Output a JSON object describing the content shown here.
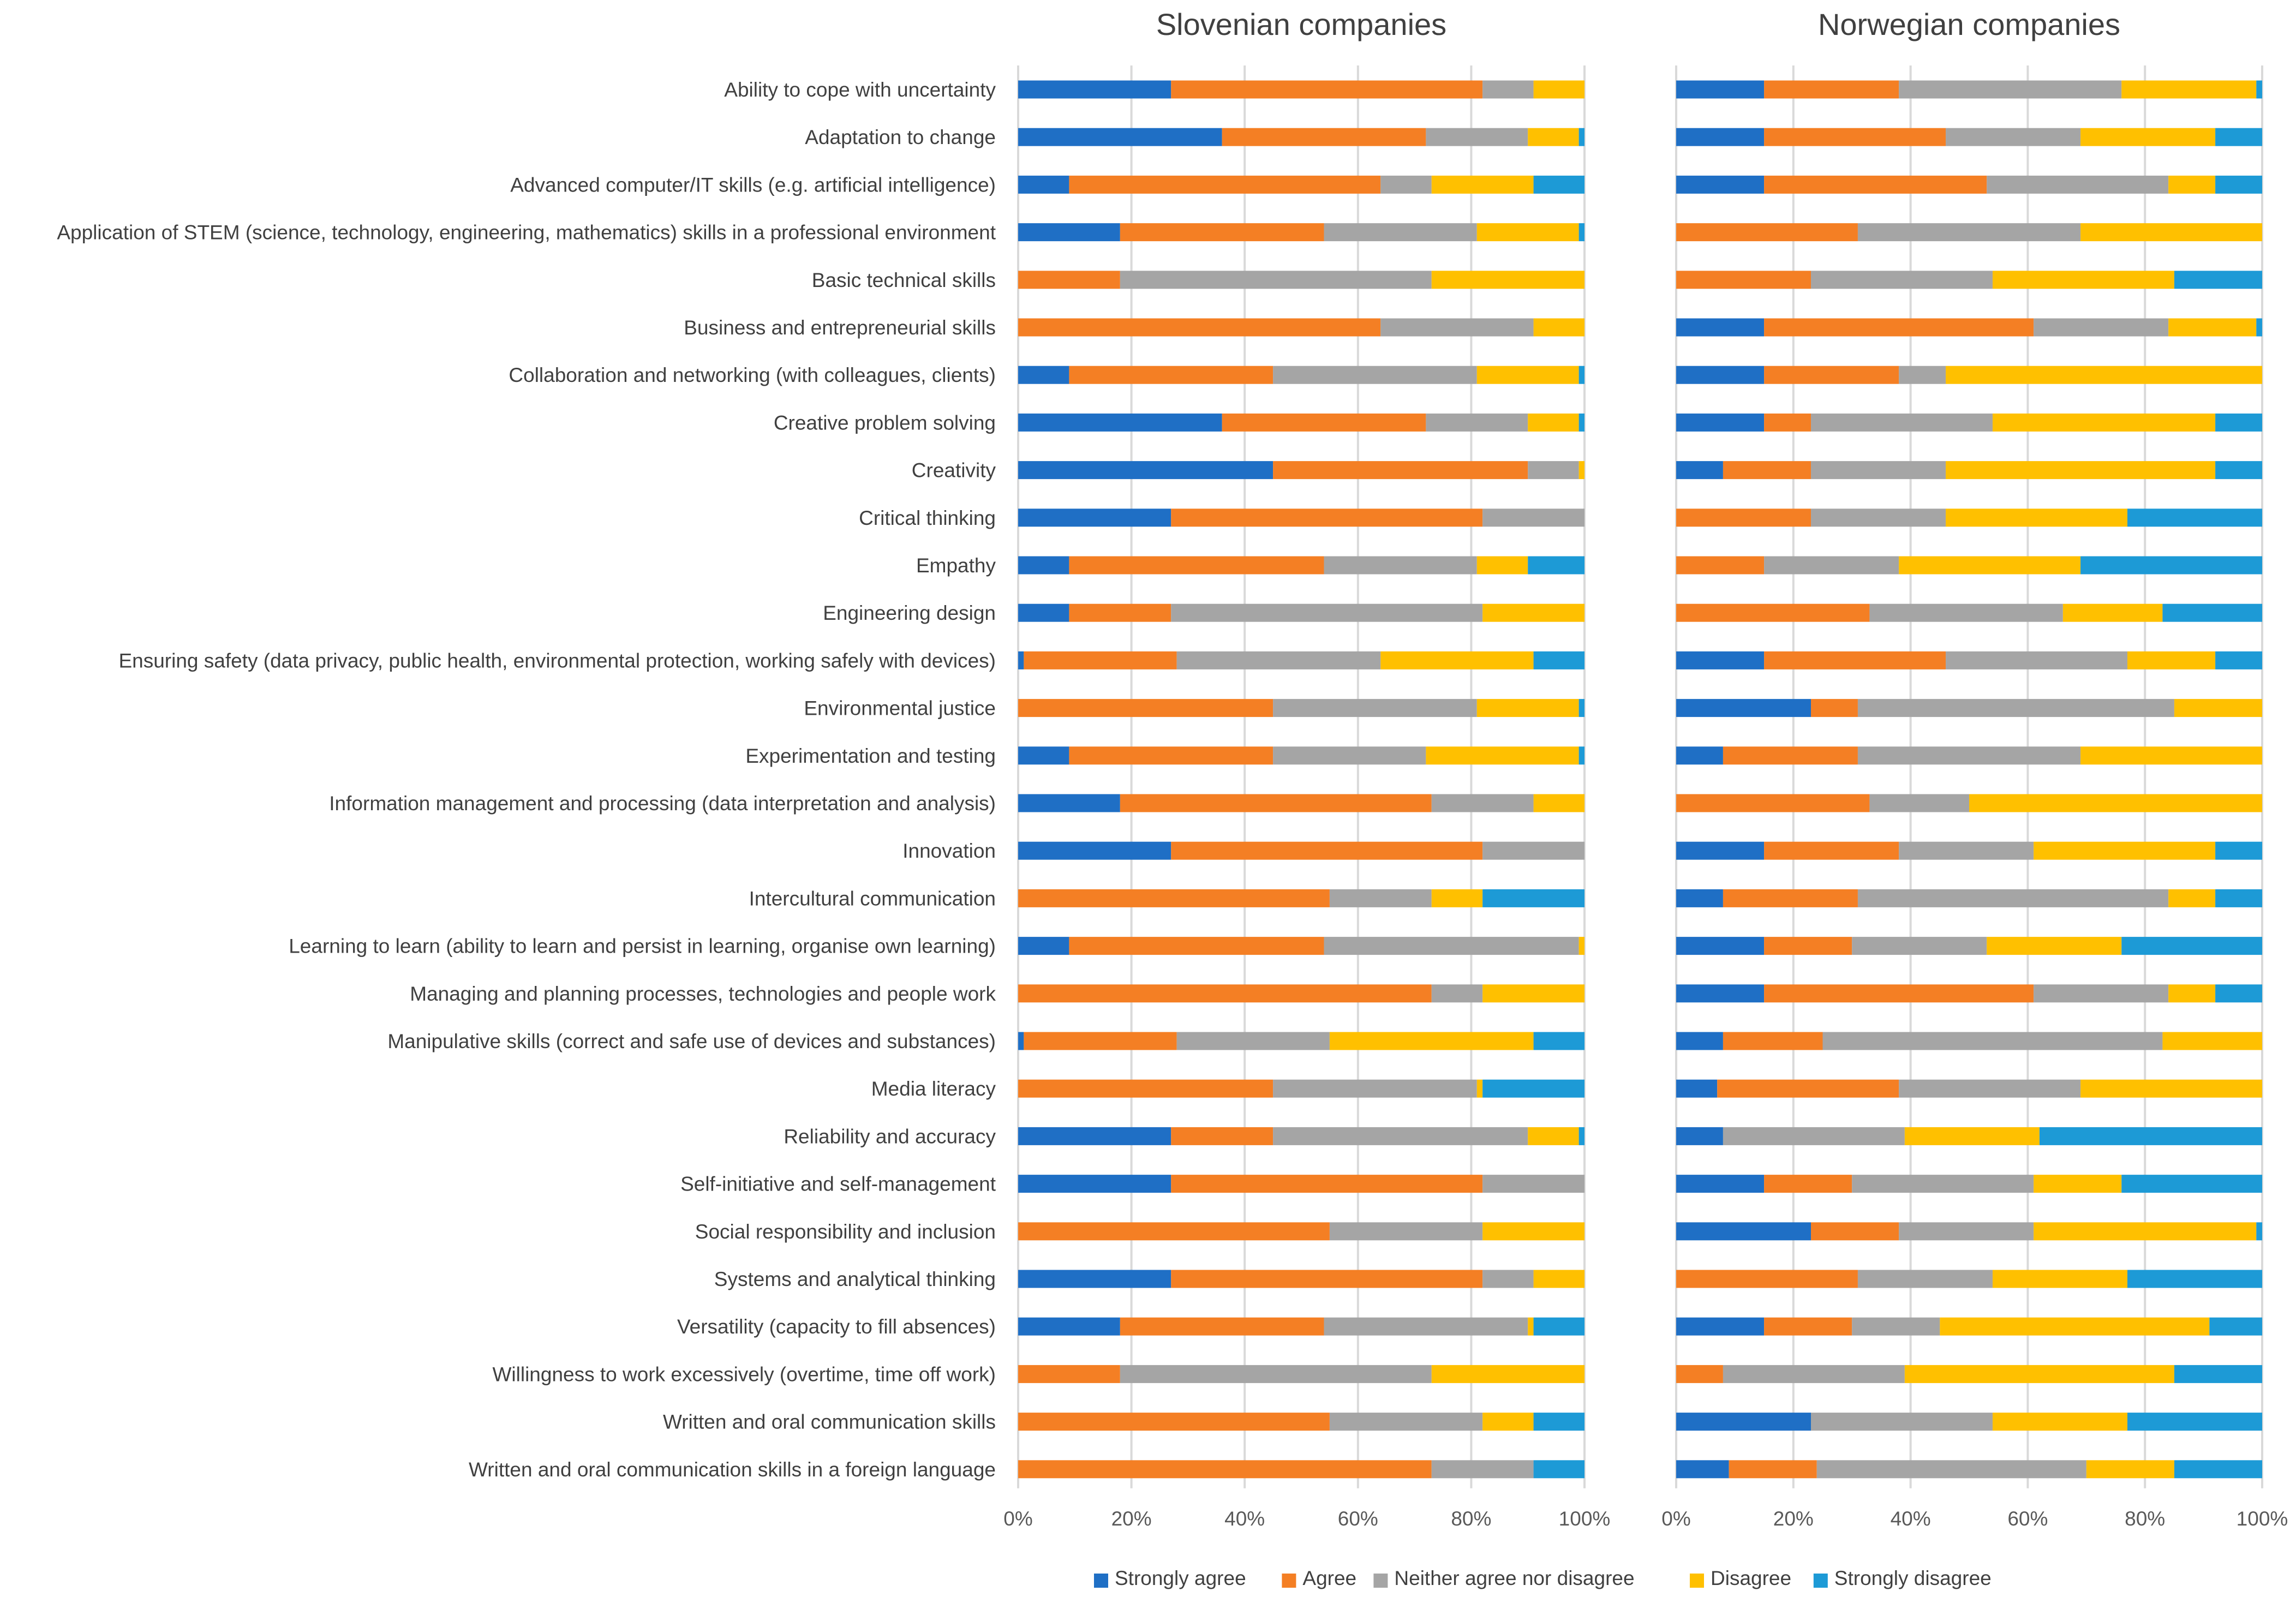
{
  "chart_data": {
    "type": "bar",
    "orientation": "horizontal",
    "stacking": "percent",
    "xlim": [
      0,
      100
    ],
    "xticks": [
      "0%",
      "20%",
      "40%",
      "60%",
      "80%",
      "100%"
    ],
    "legend_position": "bottom",
    "grid": true,
    "colors": {
      "Strongly agree": "#1f6fc5",
      "Agree": "#f47f24",
      "Neither agree nor disagree": "#a5a5a5",
      "Disagree": "#ffc000",
      "Strongly disagree": "#1d9ad6"
    },
    "legend": [
      "Strongly agree",
      "Agree",
      "Neither agree nor disagree",
      "Disagree",
      "Strongly disagree"
    ],
    "categories": [
      "Ability to cope with uncertainty",
      "Adaptation to change",
      "Advanced computer/IT skills (e.g. artificial intelligence)",
      "Application of STEM (science, technology, engineering, mathematics) skills in a professional environment",
      "Basic technical skills",
      "Business and entrepreneurial skills",
      "Collaboration and networking (with colleagues, clients)",
      "Creative problem solving",
      "Creativity",
      "Critical thinking",
      "Empathy",
      "Engineering design",
      "Ensuring safety (data privacy, public health, environmental protection, working safely with devices)",
      "Environmental justice",
      "Experimentation and testing",
      "Information management and processing (data interpretation and analysis)",
      "Innovation",
      "Intercultural communication",
      "Learning to learn (ability to learn and persist in learning, organise own learning)",
      "Managing and planning processes, technologies and people work",
      "Manipulative skills (correct and safe use of devices and substances)",
      "Media literacy",
      "Reliability and accuracy",
      "Self-initiative and self-management",
      "Social responsibility and inclusion",
      "Systems and analytical thinking",
      "Versatility (capacity to fill absences)",
      "Willingness to work excessively (overtime, time off work)",
      "Written and oral communication skills",
      "Written and oral communication skills in a foreign language"
    ],
    "panels": [
      {
        "title": "Slovenian companies",
        "rows": [
          [
            27,
            55,
            9,
            9,
            0
          ],
          [
            36,
            36,
            18,
            9,
            1
          ],
          [
            9,
            55,
            9,
            18,
            9
          ],
          [
            18,
            36,
            27,
            18,
            1
          ],
          [
            0,
            18,
            55,
            27,
            0
          ],
          [
            0,
            64,
            27,
            9,
            0
          ],
          [
            9,
            36,
            36,
            18,
            1
          ],
          [
            36,
            36,
            18,
            9,
            1
          ],
          [
            45,
            45,
            9,
            1,
            0
          ],
          [
            27,
            55,
            18,
            0,
            0
          ],
          [
            9,
            45,
            27,
            9,
            10
          ],
          [
            9,
            18,
            55,
            18,
            0
          ],
          [
            1,
            27,
            36,
            27,
            9
          ],
          [
            0,
            45,
            36,
            18,
            1
          ],
          [
            9,
            36,
            27,
            27,
            1
          ],
          [
            18,
            55,
            18,
            9,
            0
          ],
          [
            27,
            55,
            18,
            0,
            0
          ],
          [
            0,
            55,
            18,
            9,
            18
          ],
          [
            9,
            45,
            45,
            1,
            0
          ],
          [
            0,
            73,
            9,
            18,
            0
          ],
          [
            1,
            27,
            27,
            36,
            9
          ],
          [
            0,
            45,
            36,
            1,
            18
          ],
          [
            27,
            18,
            45,
            9,
            1
          ],
          [
            27,
            55,
            18,
            0,
            0
          ],
          [
            0,
            55,
            27,
            18,
            0
          ],
          [
            27,
            55,
            9,
            9,
            0
          ],
          [
            18,
            36,
            36,
            1,
            9
          ],
          [
            0,
            18,
            55,
            27,
            0
          ],
          [
            0,
            55,
            27,
            9,
            9
          ],
          [
            0,
            73,
            18,
            0,
            9
          ]
        ]
      },
      {
        "title": "Norwegian companies",
        "rows": [
          [
            15,
            23,
            38,
            23,
            1
          ],
          [
            15,
            31,
            23,
            23,
            8
          ],
          [
            15,
            38,
            31,
            8,
            8
          ],
          [
            0,
            31,
            38,
            31,
            0
          ],
          [
            0,
            23,
            31,
            31,
            15
          ],
          [
            15,
            46,
            23,
            15,
            1
          ],
          [
            15,
            23,
            8,
            54,
            0
          ],
          [
            15,
            8,
            31,
            38,
            8
          ],
          [
            8,
            15,
            23,
            46,
            8
          ],
          [
            0,
            23,
            23,
            31,
            23
          ],
          [
            0,
            15,
            23,
            31,
            31
          ],
          [
            0,
            33,
            33,
            17,
            17
          ],
          [
            15,
            31,
            31,
            15,
            8
          ],
          [
            23,
            8,
            54,
            15,
            0
          ],
          [
            8,
            23,
            38,
            31,
            0
          ],
          [
            0,
            33,
            17,
            50,
            0
          ],
          [
            15,
            23,
            23,
            31,
            8
          ],
          [
            8,
            23,
            53,
            8,
            8
          ],
          [
            15,
            15,
            23,
            23,
            24
          ],
          [
            15,
            46,
            23,
            8,
            8
          ],
          [
            8,
            17,
            58,
            17,
            0
          ],
          [
            7,
            31,
            31,
            31,
            0
          ],
          [
            8,
            0,
            31,
            23,
            38
          ],
          [
            15,
            15,
            31,
            15,
            24
          ],
          [
            23,
            15,
            23,
            38,
            1
          ],
          [
            0,
            31,
            23,
            23,
            23
          ],
          [
            15,
            15,
            15,
            46,
            9
          ],
          [
            0,
            8,
            31,
            46,
            15
          ],
          [
            23,
            0,
            31,
            23,
            23
          ],
          [
            9,
            15,
            46,
            15,
            15
          ]
        ]
      }
    ]
  }
}
